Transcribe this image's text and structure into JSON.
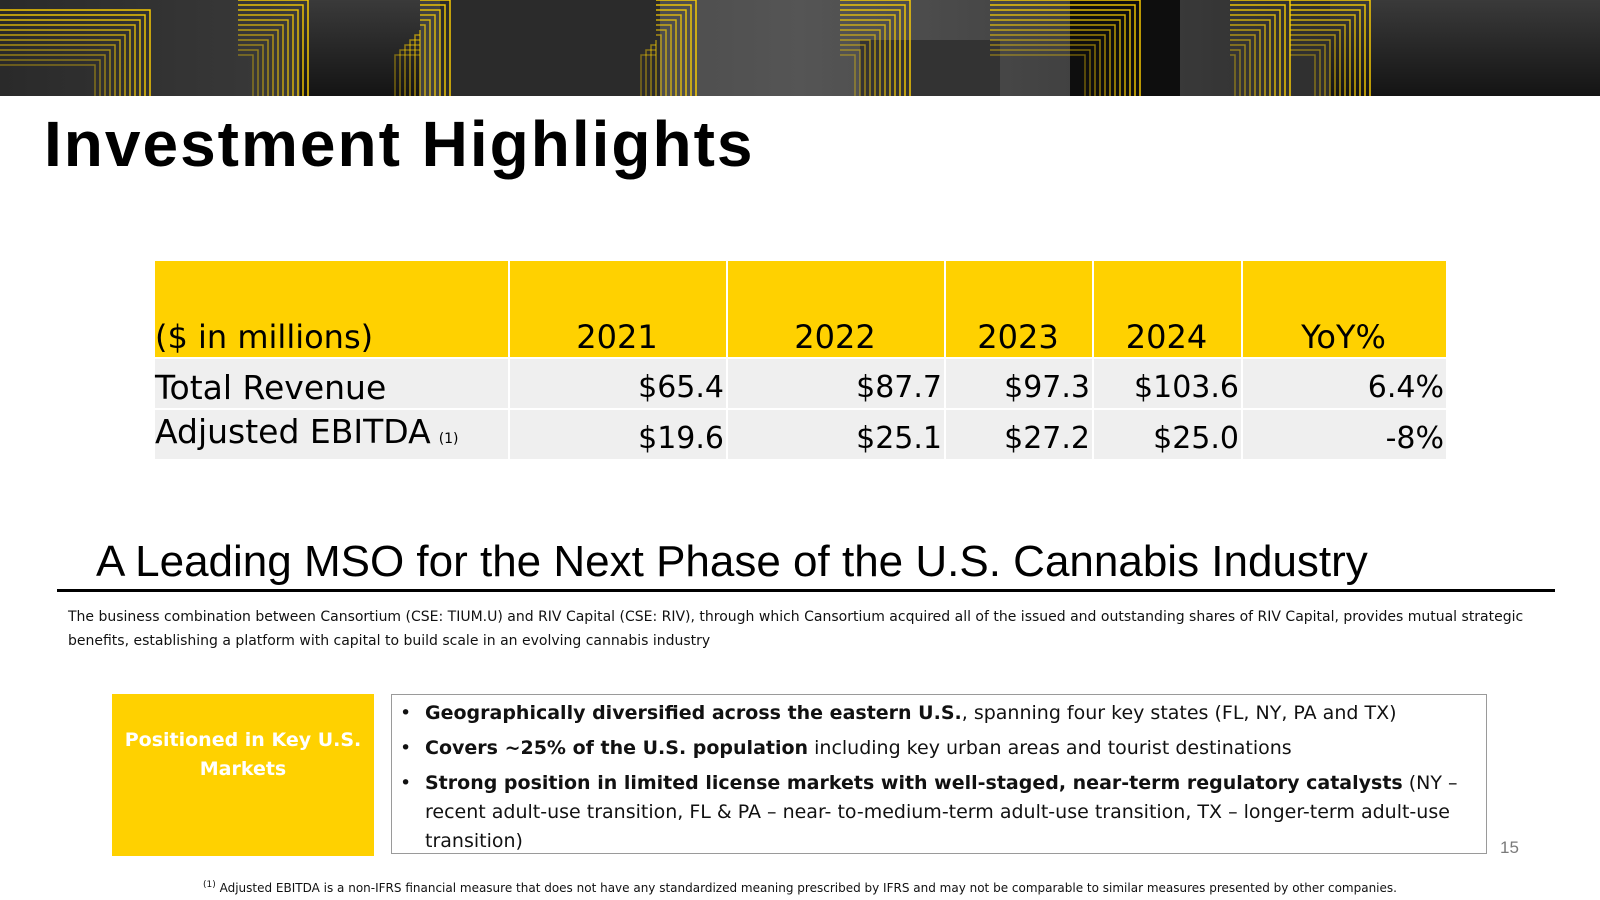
{
  "slide": {
    "title": "Investment Highlights",
    "page_number": "15"
  },
  "financials": {
    "header": [
      "($ in millions)",
      "2021",
      "2022",
      "2023",
      "2024",
      "YoY%"
    ],
    "rows": [
      {
        "label": "Total Revenue",
        "ref": "",
        "values": [
          "$65.4",
          "$87.7",
          "$97.3",
          "$103.6",
          "6.4%"
        ]
      },
      {
        "label": "Adjusted EBITDA",
        "ref": "(1)",
        "values": [
          "$19.6",
          "$25.1",
          "$27.2",
          "$25.0",
          "-8%"
        ]
      }
    ]
  },
  "section": {
    "heading": "A Leading MSO for the Next Phase of the U.S. Cannabis Industry",
    "description": "The business combination between Cansortium (CSE: TIUM.U) and RIV Capital (CSE: RIV), through which Cansortium acquired all of the issued and outstanding shares of RIV Capital, provides mutual strategic benefits, establishing a platform with capital to build scale in an evolving cannabis industry"
  },
  "key_markets": {
    "label": "Positioned in Key U.S. Markets",
    "bullets": [
      {
        "bold": "Geographically diversified across the eastern U.S.",
        "rest": ", spanning four key states (FL, NY, PA and TX)"
      },
      {
        "bold": "Covers ~25% of the U.S. population",
        "rest": " including key urban areas and tourist destinations"
      },
      {
        "bold": "Strong position in limited license markets with well-staged, near-term regulatory catalysts",
        "rest": " (NY – recent adult-use transition, FL & PA – near- to-medium-term adult-use transition, TX – longer-term adult-use transition)"
      }
    ]
  },
  "footnote": {
    "marker": "(1)",
    "text": "Adjusted EBITDA is a non-IFRS financial measure that does not have any standardized meaning prescribed by IFRS and may not be comparable to similar measures presented by other companies."
  },
  "colors": {
    "accent_yellow": "#FFD100",
    "table_row_gray": "#EFEFEF",
    "banner_dark": "#111111"
  }
}
